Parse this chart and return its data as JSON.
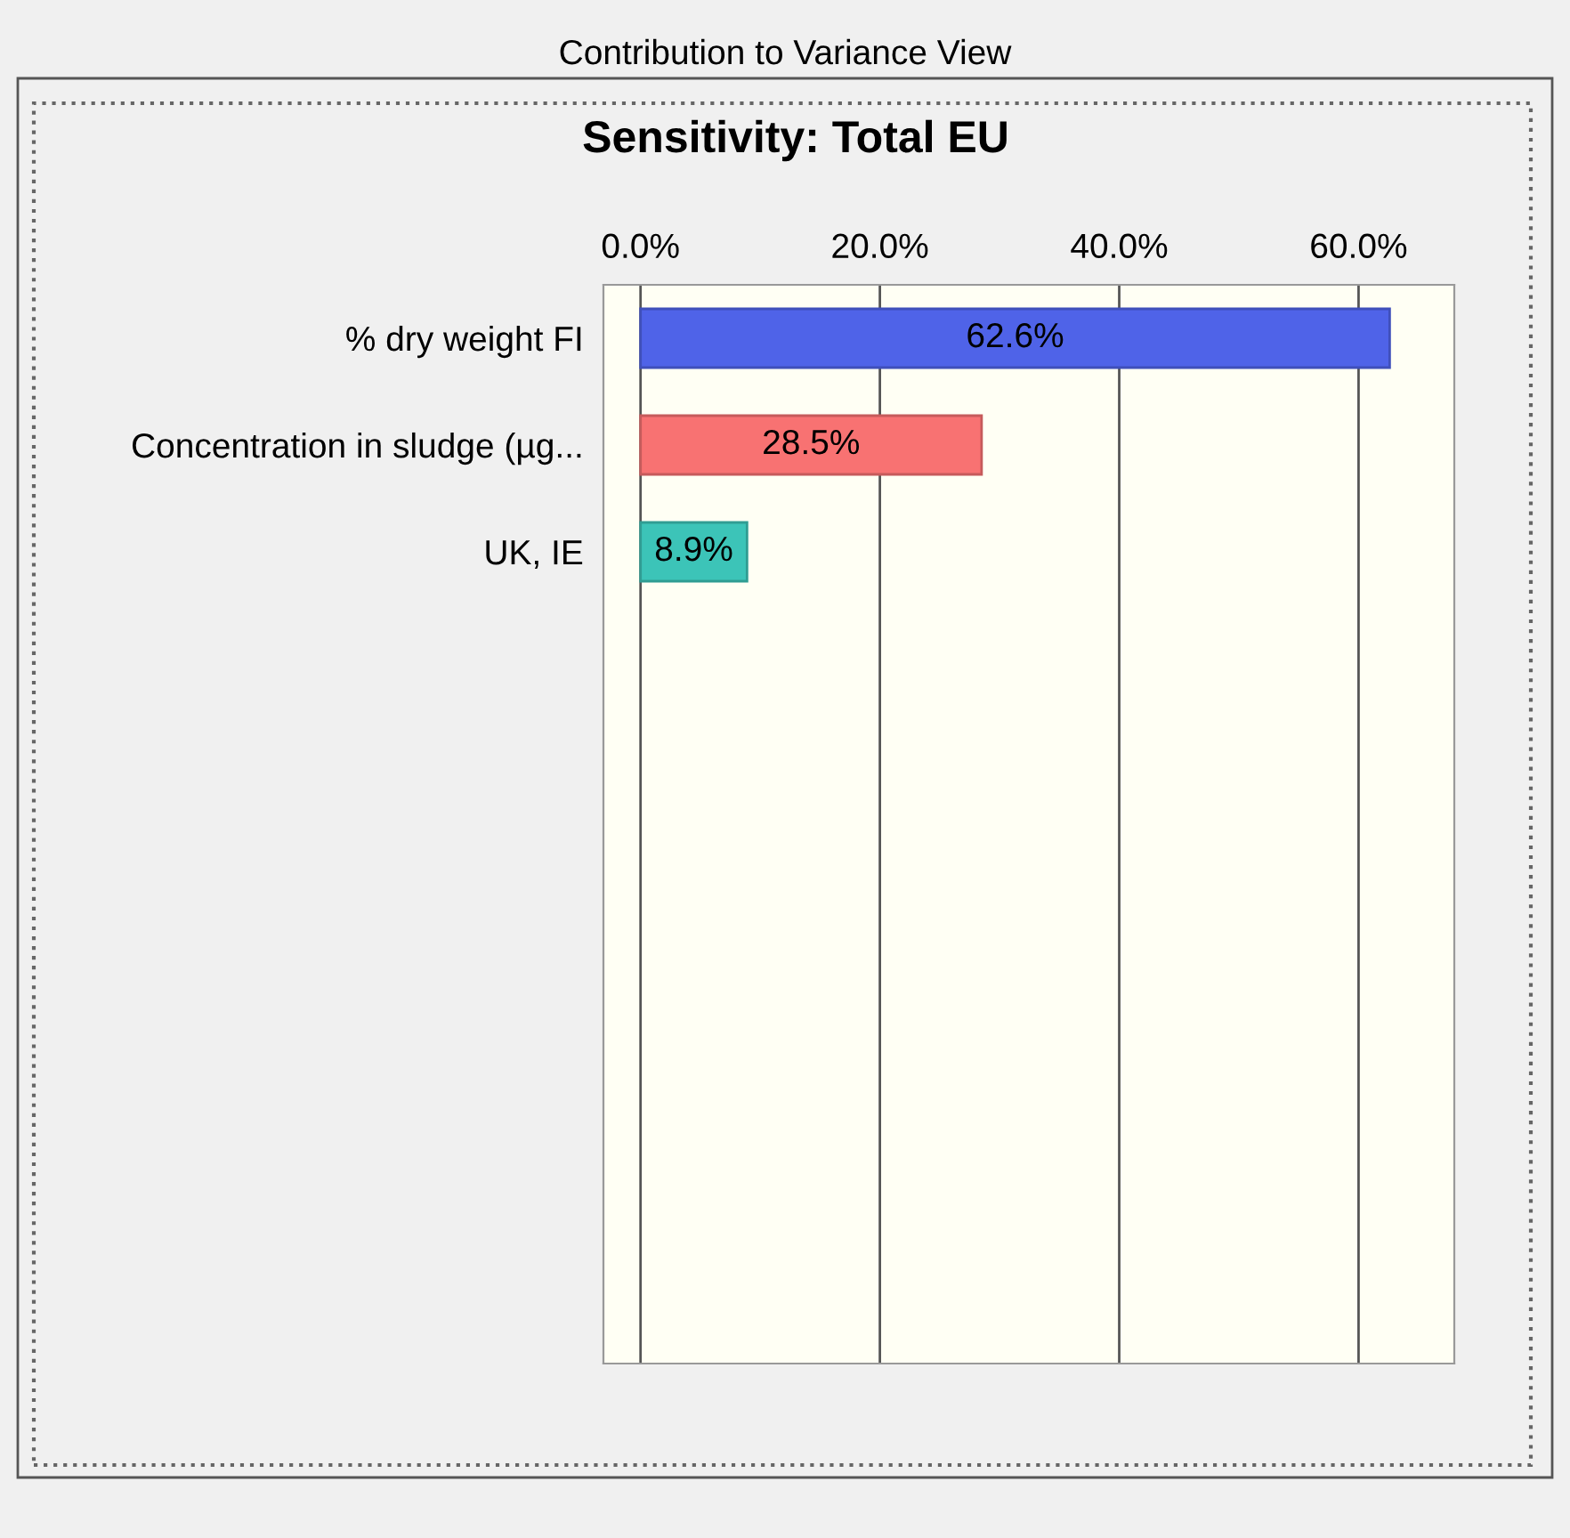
{
  "chart_data": {
    "type": "bar",
    "orientation": "horizontal",
    "subtitle": "Contribution to Variance View",
    "title": "Sensitivity: Total EU",
    "categories": [
      "% dry weight FI",
      "Concentration in sludge (µg...",
      "UK, IE"
    ],
    "values": [
      62.6,
      28.5,
      8.9
    ],
    "colors": [
      "#4f63e8",
      "#f87272",
      "#3cc4b8"
    ],
    "value_labels": [
      "62.6%",
      "28.5%",
      "8.9%"
    ],
    "xlim": [
      -3.1,
      68
    ],
    "xticks": [
      {
        "value": 0,
        "label": "0.0%"
      },
      {
        "value": 20,
        "label": "20.0%"
      },
      {
        "value": 40,
        "label": "40.0%"
      },
      {
        "value": 60,
        "label": "60.0%"
      }
    ],
    "grid": "x",
    "legend": false
  }
}
